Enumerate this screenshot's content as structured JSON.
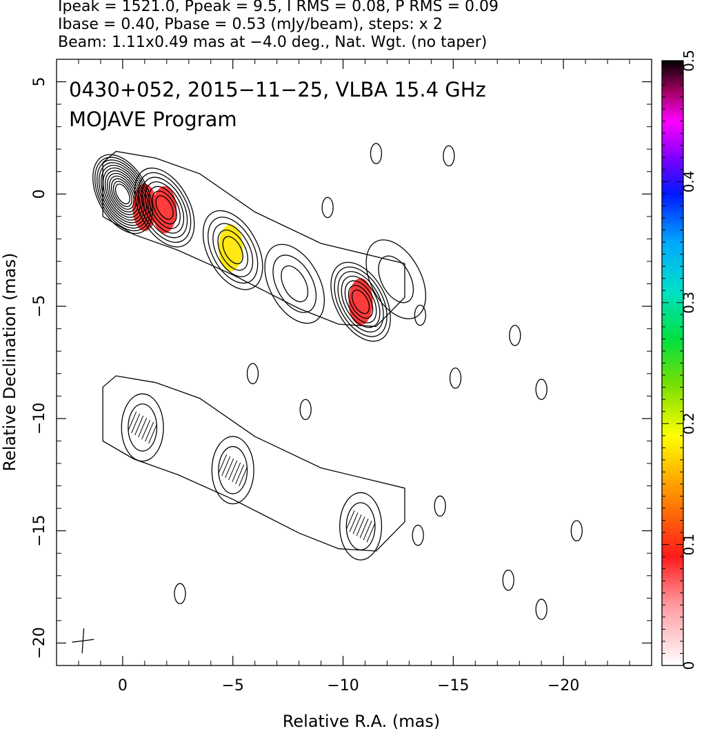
{
  "header": {
    "line1": "Ipeak = 1521.0, Ppeak = 9.5, I RMS = 0.08, P RMS = 0.09",
    "line2": "Ibase = 0.40, Pbase = 0.53 (mJy/beam), steps: x 2",
    "line3": "Beam: 1.11x0.49 mas at −4.0 deg., Nat. Wgt. (no taper)"
  },
  "plot_title": {
    "line1": "0430+052, 2015−11−25, VLBA 15.4 GHz",
    "line2": "MOJAVE Program"
  },
  "chart_data": {
    "type": "contour",
    "xlabel": "Relative R.A. (mas)",
    "ylabel": "Relative Declination (mas)",
    "xlim": [
      3,
      -24
    ],
    "ylim": [
      -21,
      6
    ],
    "x_ticks": [
      0,
      -5,
      -10,
      -15,
      -20
    ],
    "x_tick_labels": [
      "0",
      "−5",
      "−10",
      "−15",
      "−20"
    ],
    "y_ticks": [
      5,
      0,
      -5,
      -10,
      -15,
      -20
    ],
    "y_tick_labels": [
      "5",
      "0",
      "−5",
      "−10",
      "−15",
      "−20"
    ],
    "colorbar": {
      "range": [
        0,
        0.5
      ],
      "ticks": [
        0,
        0.1,
        0.2,
        0.3,
        0.4,
        0.5
      ],
      "tick_labels": [
        "0",
        "0.1",
        "0.2",
        "0.3",
        "0.4",
        "0.5"
      ]
    },
    "intensity_components": [
      {
        "x": 0.0,
        "y": 0.0,
        "levels": 12
      },
      {
        "x": -1.9,
        "y": -0.6,
        "levels": 7
      },
      {
        "x": -5.0,
        "y": -2.5,
        "levels": 5
      },
      {
        "x": -7.8,
        "y": -4.0,
        "levels": 3
      },
      {
        "x": -10.8,
        "y": -4.8,
        "levels": 7
      },
      {
        "x": -12.4,
        "y": -3.8,
        "levels": 2
      }
    ],
    "polarization_patches": [
      {
        "x": -1.0,
        "y": -0.6,
        "value": 0.08
      },
      {
        "x": -1.9,
        "y": -0.7,
        "value": 0.06
      },
      {
        "x": -4.9,
        "y": -2.4,
        "value": 0.16
      },
      {
        "x": -10.8,
        "y": -4.8,
        "value": 0.07
      }
    ],
    "polarized_components": [
      {
        "x": -0.9,
        "y": -10.4,
        "levels": 2
      },
      {
        "x": -5.0,
        "y": -12.3,
        "levels": 2
      },
      {
        "x": -10.8,
        "y": -14.8,
        "levels": 2
      }
    ],
    "beam": {
      "major_mas": 1.11,
      "minor_mas": 0.49,
      "pa_deg": -4.0
    }
  },
  "colors": {
    "contour": "#000000",
    "background": "#ffffff"
  }
}
